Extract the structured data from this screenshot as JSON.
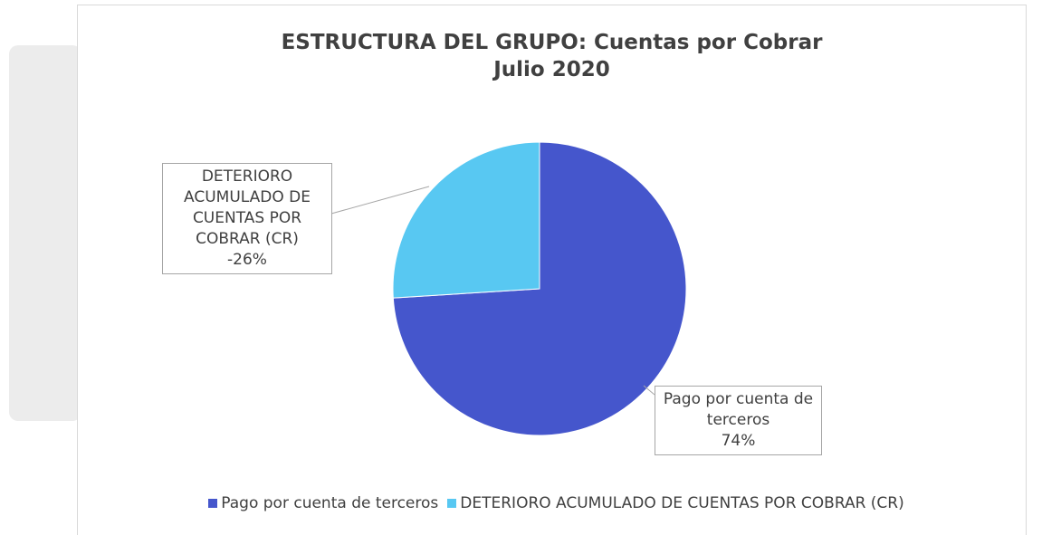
{
  "chart_data": {
    "type": "pie",
    "title": "ESTRUCTURA DEL GRUPO: Cuentas por Cobrar",
    "subtitle": "Julio 2020",
    "categories": [
      "Pago por cuenta de terceros",
      "DETERIORO ACUMULADO DE CUENTAS POR COBRAR (CR)"
    ],
    "values": [
      74,
      -26
    ],
    "value_labels": [
      "74%",
      "-26%"
    ],
    "colors": [
      "#4556cc",
      "#58c8f2"
    ],
    "legend": "bottom"
  }
}
